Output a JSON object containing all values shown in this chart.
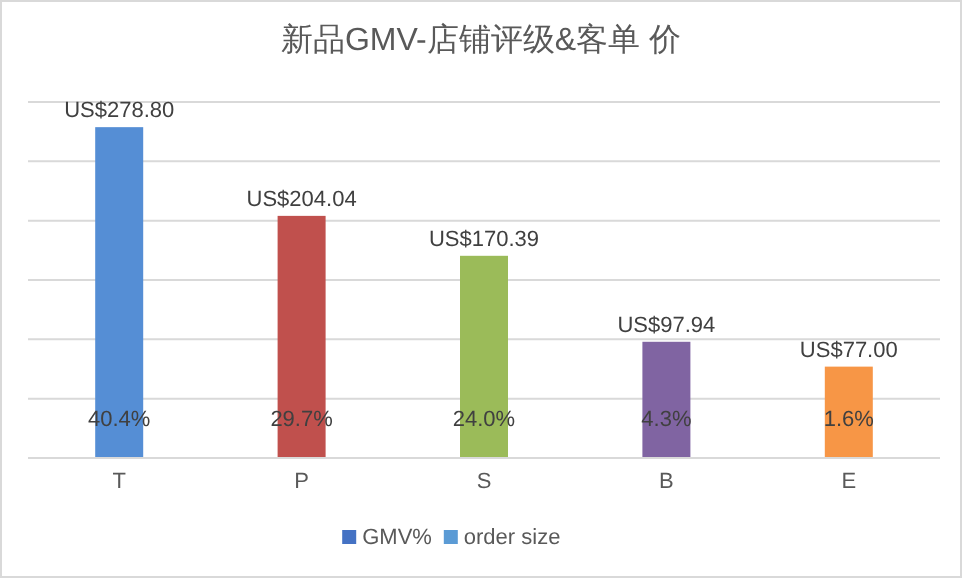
{
  "chart_data": {
    "type": "bar",
    "title": "新品GMV-店铺评级&客单 价",
    "categories": [
      "T",
      "P",
      "S",
      "B",
      "E"
    ],
    "ylim": [
      0,
      300
    ],
    "yticks": [
      {
        "value": 0,
        "label": null
      },
      {
        "value": 50,
        "label": null
      },
      {
        "value": 100,
        "label": null
      },
      {
        "value": 150,
        "label": null
      },
      {
        "value": 200,
        "label": null
      },
      {
        "value": 250,
        "label": null
      },
      {
        "value": 300,
        "label": null
      }
    ],
    "grid": "y",
    "tick_labels": "x",
    "legend": "bottom",
    "series": [
      {
        "name": "GMV%",
        "color": "#4472c4",
        "values": [
          0.404,
          0.297,
          0.24,
          0.043,
          0.016
        ],
        "value_labels": [
          "40.4%",
          "29.7%",
          "24.0%",
          "4.3%",
          "1.6%"
        ]
      },
      {
        "name": "order size",
        "color": "#5b9bd5",
        "colors": [
          "#558ed5",
          "#c0504d",
          "#9bbb59",
          "#8064a2",
          "#f79646"
        ],
        "values": [
          278.8,
          204.04,
          170.39,
          97.94,
          77.0
        ],
        "value_labels": [
          "US$278.80",
          "US$204.04",
          "US$170.39",
          "US$97.94",
          "US$77.00"
        ]
      }
    ]
  }
}
